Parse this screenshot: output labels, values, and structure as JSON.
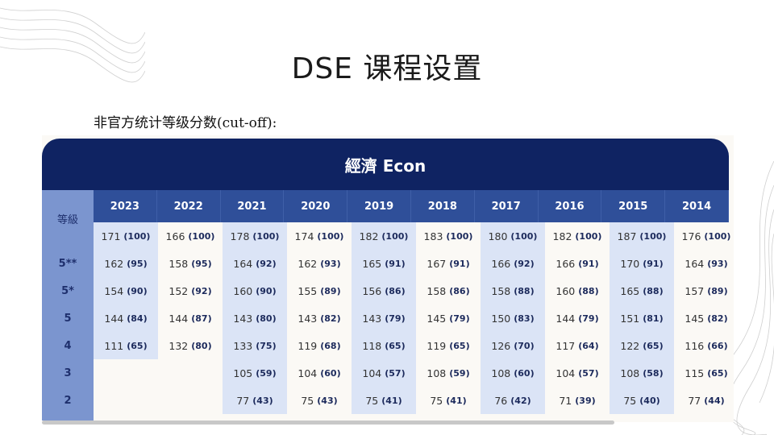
{
  "title": "DSE 课程设置",
  "subtitle": "非官方统计等级分数(cut-off):",
  "table": {
    "subject": "經濟 Econ",
    "grade_header": "等級",
    "years": [
      "2023",
      "2022",
      "2021",
      "2020",
      "2019",
      "2018",
      "2017",
      "2016",
      "2015",
      "2014"
    ],
    "grades": [
      "",
      "5**",
      "5*",
      "5",
      "4",
      "3",
      "2"
    ],
    "rows": [
      [
        [
          "171",
          "(100)"
        ],
        [
          "166",
          "(100)"
        ],
        [
          "178",
          "(100)"
        ],
        [
          "174",
          "(100)"
        ],
        [
          "182",
          "(100)"
        ],
        [
          "183",
          "(100)"
        ],
        [
          "180",
          "(100)"
        ],
        [
          "182",
          "(100)"
        ],
        [
          "187",
          "(100)"
        ],
        [
          "176",
          "(100)"
        ]
      ],
      [
        [
          "162",
          "(95)"
        ],
        [
          "158",
          "(95)"
        ],
        [
          "164",
          "(92)"
        ],
        [
          "162",
          "(93)"
        ],
        [
          "165",
          "(91)"
        ],
        [
          "167",
          "(91)"
        ],
        [
          "166",
          "(92)"
        ],
        [
          "166",
          "(91)"
        ],
        [
          "170",
          "(91)"
        ],
        [
          "164",
          "(93)"
        ]
      ],
      [
        [
          "154",
          "(90)"
        ],
        [
          "152",
          "(92)"
        ],
        [
          "160",
          "(90)"
        ],
        [
          "155",
          "(89)"
        ],
        [
          "156",
          "(86)"
        ],
        [
          "158",
          "(86)"
        ],
        [
          "158",
          "(88)"
        ],
        [
          "160",
          "(88)"
        ],
        [
          "165",
          "(88)"
        ],
        [
          "157",
          "(89)"
        ]
      ],
      [
        [
          "144",
          "(84)"
        ],
        [
          "144",
          "(87)"
        ],
        [
          "143",
          "(80)"
        ],
        [
          "143",
          "(82)"
        ],
        [
          "143",
          "(79)"
        ],
        [
          "145",
          "(79)"
        ],
        [
          "150",
          "(83)"
        ],
        [
          "144",
          "(79)"
        ],
        [
          "151",
          "(81)"
        ],
        [
          "145",
          "(82)"
        ]
      ],
      [
        [
          "111",
          "(65)"
        ],
        [
          "132",
          "(80)"
        ],
        [
          "133",
          "(75)"
        ],
        [
          "119",
          "(68)"
        ],
        [
          "118",
          "(65)"
        ],
        [
          "119",
          "(65)"
        ],
        [
          "126",
          "(70)"
        ],
        [
          "117",
          "(64)"
        ],
        [
          "122",
          "(65)"
        ],
        [
          "116",
          "(66)"
        ]
      ],
      [
        null,
        null,
        [
          "105",
          "(59)"
        ],
        [
          "104",
          "(60)"
        ],
        [
          "104",
          "(57)"
        ],
        [
          "108",
          "(59)"
        ],
        [
          "108",
          "(60)"
        ],
        [
          "104",
          "(57)"
        ],
        [
          "108",
          "(58)"
        ],
        [
          "115",
          "(65)"
        ]
      ],
      [
        null,
        null,
        [
          "77",
          "(43)"
        ],
        [
          "75",
          "(43)"
        ],
        [
          "75",
          "(41)"
        ],
        [
          "75",
          "(41)"
        ],
        [
          "76",
          "(42)"
        ],
        [
          "71",
          "(39)"
        ],
        [
          "75",
          "(40)"
        ],
        [
          "77",
          "(44)"
        ]
      ]
    ]
  },
  "colors": {
    "header_bg": "#0f2362",
    "year_row_bg": "#2f4f99",
    "grade_col_bg": "#7b95cf",
    "shaded_col_bg": "#dbe4f6"
  }
}
